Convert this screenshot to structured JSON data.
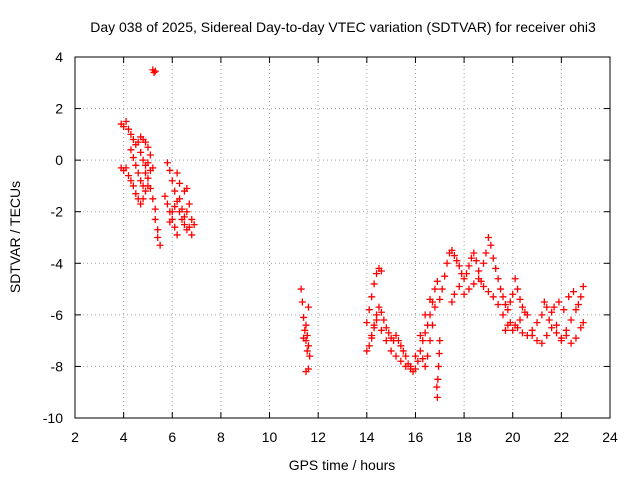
{
  "chart_data": {
    "type": "scatter",
    "title": "Day 038 of 2025, Sidereal Day-to-day VTEC variation (SDTVAR) for receiver ohi3",
    "xlabel": "GPS time / hours",
    "ylabel": "SDTVAR / TECUs",
    "xlim": [
      2,
      24
    ],
    "ylim": [
      -10,
      4
    ],
    "xticks": [
      "2",
      "4",
      "6",
      "8",
      "10",
      "12",
      "14",
      "16",
      "18",
      "20",
      "22",
      "24"
    ],
    "yticks": [
      "4",
      "2",
      "0",
      "-2",
      "-4",
      "-6",
      "-8",
      "-10"
    ],
    "grid": true,
    "marker": "+",
    "color": "#ff0000",
    "series": [
      {
        "name": "ohi3",
        "points": [
          [
            3.9,
            1.4
          ],
          [
            4.0,
            1.3
          ],
          [
            4.1,
            1.5
          ],
          [
            4.2,
            1.2
          ],
          [
            4.3,
            1.0
          ],
          [
            4.4,
            0.8
          ],
          [
            4.5,
            0.6
          ],
          [
            4.6,
            0.7
          ],
          [
            4.7,
            0.9
          ],
          [
            4.8,
            0.8
          ],
          [
            4.9,
            0.7
          ],
          [
            5.0,
            0.5
          ],
          [
            5.1,
            0.2
          ],
          [
            5.2,
            -0.3
          ],
          [
            4.3,
            0.4
          ],
          [
            4.4,
            0.1
          ],
          [
            4.5,
            -0.2
          ],
          [
            4.6,
            -0.5
          ],
          [
            4.7,
            -0.8
          ],
          [
            4.8,
            -1.0
          ],
          [
            4.9,
            -0.5
          ],
          [
            5.0,
            -0.7
          ],
          [
            5.1,
            -1.1
          ],
          [
            5.2,
            -1.5
          ],
          [
            5.3,
            -1.9
          ],
          [
            5.3,
            -2.3
          ],
          [
            5.4,
            -2.7
          ],
          [
            5.4,
            -3.0
          ],
          [
            3.9,
            -0.3
          ],
          [
            4.0,
            -0.4
          ],
          [
            4.1,
            -0.3
          ],
          [
            4.2,
            -0.6
          ],
          [
            4.3,
            -0.8
          ],
          [
            4.4,
            -1.0
          ],
          [
            4.5,
            -1.3
          ],
          [
            4.6,
            -1.5
          ],
          [
            4.7,
            -1.7
          ],
          [
            4.8,
            -1.5
          ],
          [
            4.9,
            -1.2
          ],
          [
            5.0,
            -1.0
          ],
          [
            4.7,
            0.3
          ],
          [
            4.8,
            0.0
          ],
          [
            4.9,
            -0.2
          ],
          [
            5.0,
            -0.1
          ],
          [
            5.1,
            -0.4
          ],
          [
            5.2,
            3.5
          ],
          [
            5.25,
            3.4
          ],
          [
            5.3,
            3.45
          ],
          [
            5.5,
            -3.3
          ],
          [
            5.8,
            -0.1
          ],
          [
            5.9,
            -0.4
          ],
          [
            6.0,
            -0.8
          ],
          [
            6.1,
            -1.2
          ],
          [
            6.2,
            -1.6
          ],
          [
            6.3,
            -2.0
          ],
          [
            6.4,
            -2.3
          ],
          [
            6.5,
            -2.5
          ],
          [
            6.6,
            -2.7
          ],
          [
            6.7,
            -2.6
          ],
          [
            6.8,
            -2.9
          ],
          [
            5.7,
            -1.4
          ],
          [
            5.8,
            -1.7
          ],
          [
            5.9,
            -2.0
          ],
          [
            6.0,
            -2.3
          ],
          [
            6.1,
            -2.6
          ],
          [
            6.2,
            -2.9
          ],
          [
            5.9,
            -2.4
          ],
          [
            6.0,
            -2.0
          ],
          [
            6.1,
            -1.8
          ],
          [
            6.3,
            -1.5
          ],
          [
            6.4,
            -1.9
          ],
          [
            6.5,
            -2.2
          ],
          [
            6.6,
            -2.0
          ],
          [
            6.7,
            -1.7
          ],
          [
            6.8,
            -2.3
          ],
          [
            6.9,
            -2.5
          ],
          [
            6.2,
            -0.5
          ],
          [
            6.3,
            -0.9
          ],
          [
            6.5,
            -1.2
          ],
          [
            6.6,
            -1.1
          ],
          [
            11.3,
            -5.0
          ],
          [
            11.35,
            -5.5
          ],
          [
            11.4,
            -6.1
          ],
          [
            11.45,
            -6.6
          ],
          [
            11.5,
            -7.0
          ],
          [
            11.55,
            -7.4
          ],
          [
            11.6,
            -8.1
          ],
          [
            11.5,
            -8.2
          ],
          [
            11.4,
            -6.9
          ],
          [
            11.5,
            -6.4
          ],
          [
            11.6,
            -5.7
          ],
          [
            11.55,
            -6.8
          ],
          [
            11.6,
            -7.2
          ],
          [
            11.65,
            -7.6
          ],
          [
            14.0,
            -7.4
          ],
          [
            14.1,
            -7.2
          ],
          [
            14.2,
            -6.8
          ],
          [
            14.3,
            -6.4
          ],
          [
            14.4,
            -6.0
          ],
          [
            14.5,
            -5.7
          ],
          [
            14.6,
            -5.9
          ],
          [
            14.7,
            -6.2
          ],
          [
            14.8,
            -6.5
          ],
          [
            14.9,
            -6.7
          ],
          [
            15.0,
            -6.9
          ],
          [
            15.1,
            -7.0
          ],
          [
            15.2,
            -6.8
          ],
          [
            15.3,
            -7.0
          ],
          [
            15.4,
            -7.2
          ],
          [
            15.5,
            -7.4
          ],
          [
            15.6,
            -7.6
          ],
          [
            15.7,
            -7.9
          ],
          [
            15.8,
            -8.1
          ],
          [
            15.9,
            -8.2
          ],
          [
            16.0,
            -8.1
          ],
          [
            16.1,
            -7.8
          ],
          [
            16.2,
            -7.4
          ],
          [
            16.3,
            -7.0
          ],
          [
            16.4,
            -6.7
          ],
          [
            16.5,
            -6.4
          ],
          [
            16.6,
            -6.0
          ],
          [
            16.7,
            -5.5
          ],
          [
            16.8,
            -5.0
          ],
          [
            16.9,
            -4.7
          ],
          [
            14.0,
            -6.3
          ],
          [
            14.1,
            -5.8
          ],
          [
            14.2,
            -5.3
          ],
          [
            14.3,
            -4.8
          ],
          [
            14.4,
            -4.4
          ],
          [
            14.5,
            -4.2
          ],
          [
            14.6,
            -4.3
          ],
          [
            14.2,
            -6.9
          ],
          [
            14.3,
            -6.5
          ],
          [
            14.4,
            -6.2
          ],
          [
            14.6,
            -6.6
          ],
          [
            14.8,
            -7.0
          ],
          [
            15.0,
            -7.4
          ],
          [
            15.2,
            -7.6
          ],
          [
            15.4,
            -7.8
          ],
          [
            15.6,
            -8.0
          ],
          [
            15.8,
            -8.0
          ],
          [
            16.0,
            -7.6
          ],
          [
            16.2,
            -6.8
          ],
          [
            16.4,
            -6.0
          ],
          [
            16.6,
            -5.4
          ],
          [
            16.8,
            -5.7
          ],
          [
            16.7,
            -6.4
          ],
          [
            16.6,
            -7.0
          ],
          [
            16.5,
            -7.6
          ],
          [
            16.4,
            -8.0
          ],
          [
            16.3,
            -7.7
          ],
          [
            17.0,
            -7.0
          ],
          [
            16.98,
            -7.5
          ],
          [
            16.95,
            -8.0
          ],
          [
            16.92,
            -8.5
          ],
          [
            16.9,
            -9.2
          ],
          [
            16.88,
            -8.8
          ],
          [
            17.0,
            -5.4
          ],
          [
            17.1,
            -5.0
          ],
          [
            17.2,
            -4.5
          ],
          [
            17.3,
            -4.0
          ],
          [
            17.4,
            -3.6
          ],
          [
            17.5,
            -3.5
          ],
          [
            17.6,
            -3.7
          ],
          [
            17.7,
            -3.9
          ],
          [
            17.8,
            -4.1
          ],
          [
            17.9,
            -4.4
          ],
          [
            18.0,
            -4.6
          ],
          [
            18.1,
            -4.4
          ],
          [
            18.2,
            -4.1
          ],
          [
            18.3,
            -3.8
          ],
          [
            18.4,
            -3.6
          ],
          [
            18.5,
            -3.9
          ],
          [
            18.6,
            -4.3
          ],
          [
            18.7,
            -4.7
          ],
          [
            18.8,
            -4.0
          ],
          [
            18.9,
            -3.6
          ],
          [
            19.0,
            -3.0
          ],
          [
            19.1,
            -3.3
          ],
          [
            19.2,
            -3.8
          ],
          [
            19.3,
            -4.2
          ],
          [
            19.4,
            -4.6
          ],
          [
            19.5,
            -5.0
          ],
          [
            19.6,
            -5.3
          ],
          [
            19.7,
            -5.6
          ],
          [
            19.8,
            -5.8
          ],
          [
            19.9,
            -5.5
          ],
          [
            20.0,
            -5.2
          ],
          [
            20.1,
            -4.6
          ],
          [
            20.2,
            -5.0
          ],
          [
            20.3,
            -5.4
          ],
          [
            20.4,
            -5.7
          ],
          [
            20.5,
            -5.9
          ],
          [
            20.6,
            -6.0
          ],
          [
            17.5,
            -5.5
          ],
          [
            17.6,
            -5.2
          ],
          [
            17.8,
            -4.9
          ],
          [
            18.0,
            -5.2
          ],
          [
            18.2,
            -5.0
          ],
          [
            18.4,
            -4.8
          ],
          [
            18.6,
            -4.6
          ],
          [
            18.8,
            -4.9
          ],
          [
            19.0,
            -5.1
          ],
          [
            19.2,
            -5.3
          ],
          [
            19.4,
            -5.6
          ],
          [
            19.6,
            -6.0
          ],
          [
            19.8,
            -6.4
          ],
          [
            20.0,
            -6.6
          ],
          [
            20.2,
            -6.5
          ],
          [
            20.4,
            -6.7
          ],
          [
            20.6,
            -6.8
          ],
          [
            20.8,
            -6.6
          ],
          [
            21.0,
            -6.3
          ],
          [
            21.2,
            -6.0
          ],
          [
            21.4,
            -5.7
          ],
          [
            21.6,
            -5.9
          ],
          [
            21.8,
            -6.4
          ],
          [
            22.0,
            -6.9
          ],
          [
            22.2,
            -6.6
          ],
          [
            22.4,
            -6.2
          ],
          [
            22.6,
            -5.8
          ],
          [
            22.8,
            -5.3
          ],
          [
            22.9,
            -4.9
          ],
          [
            20.8,
            -6.8
          ],
          [
            21.0,
            -7.0
          ],
          [
            21.2,
            -7.1
          ],
          [
            21.4,
            -6.8
          ],
          [
            21.6,
            -6.5
          ],
          [
            21.8,
            -6.7
          ],
          [
            22.0,
            -7.0
          ],
          [
            22.2,
            -6.8
          ],
          [
            22.4,
            -7.1
          ],
          [
            22.6,
            -6.9
          ],
          [
            22.8,
            -6.5
          ],
          [
            22.9,
            -6.3
          ],
          [
            21.3,
            -5.5
          ],
          [
            21.5,
            -6.2
          ],
          [
            21.7,
            -5.7
          ],
          [
            21.9,
            -5.5
          ],
          [
            22.1,
            -5.8
          ],
          [
            22.3,
            -5.3
          ],
          [
            22.5,
            -5.1
          ],
          [
            22.7,
            -5.6
          ],
          [
            19.7,
            -6.6
          ],
          [
            19.9,
            -6.3
          ],
          [
            20.1,
            -6.4
          ],
          [
            20.3,
            -6.2
          ]
        ]
      }
    ]
  }
}
